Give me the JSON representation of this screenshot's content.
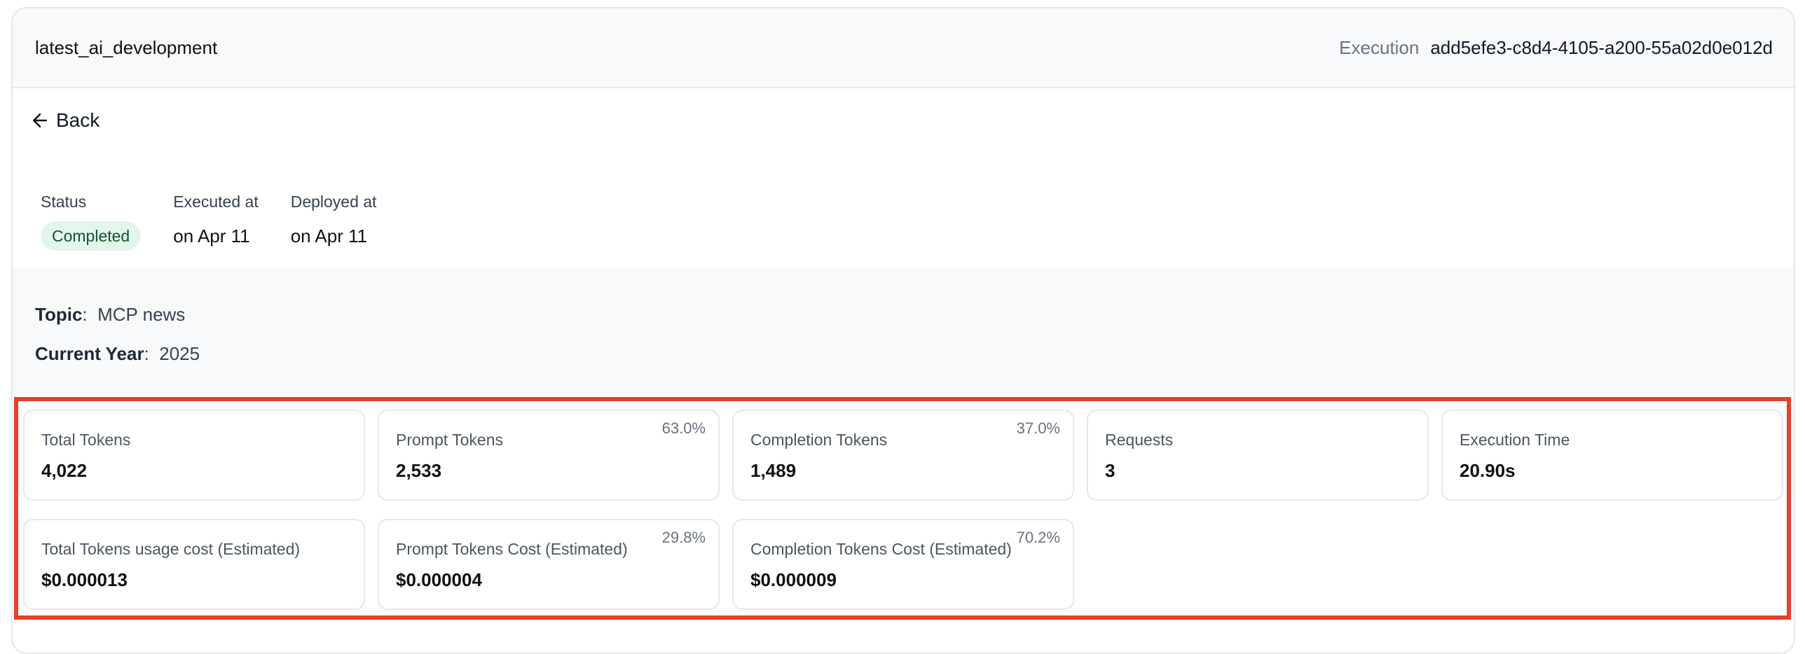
{
  "header": {
    "title": "latest_ai_development",
    "execution_label": "Execution",
    "execution_id": "add5efe3-c8d4-4105-a200-55a02d0e012d"
  },
  "back": {
    "label": "Back",
    "icon": "arrow-left-icon"
  },
  "meta": {
    "status_label": "Status",
    "status_value": "Completed",
    "status_color": "#e3f6ec",
    "executed_label": "Executed at",
    "executed_value": "on Apr 11",
    "deployed_label": "Deployed at",
    "deployed_value": "on Apr 11"
  },
  "inputs": [
    {
      "key": "Topic",
      "value": "MCP news"
    },
    {
      "key": "Current Year",
      "value": "2025"
    }
  ],
  "highlight_color": "#e8402a",
  "metrics": [
    {
      "label": "Total Tokens",
      "value": "4,022",
      "pct": ""
    },
    {
      "label": "Prompt Tokens",
      "value": "2,533",
      "pct": "63.0%"
    },
    {
      "label": "Completion Tokens",
      "value": "1,489",
      "pct": "37.0%"
    },
    {
      "label": "Requests",
      "value": "3",
      "pct": ""
    },
    {
      "label": "Execution Time",
      "value": "20.90s",
      "pct": ""
    },
    {
      "label": "Total Tokens usage cost (Estimated)",
      "value": "$0.000013",
      "pct": ""
    },
    {
      "label": "Prompt Tokens Cost (Estimated)",
      "value": "$0.000004",
      "pct": "29.8%"
    },
    {
      "label": "Completion Tokens Cost (Estimated)",
      "value": "$0.000009",
      "pct": "70.2%"
    }
  ]
}
